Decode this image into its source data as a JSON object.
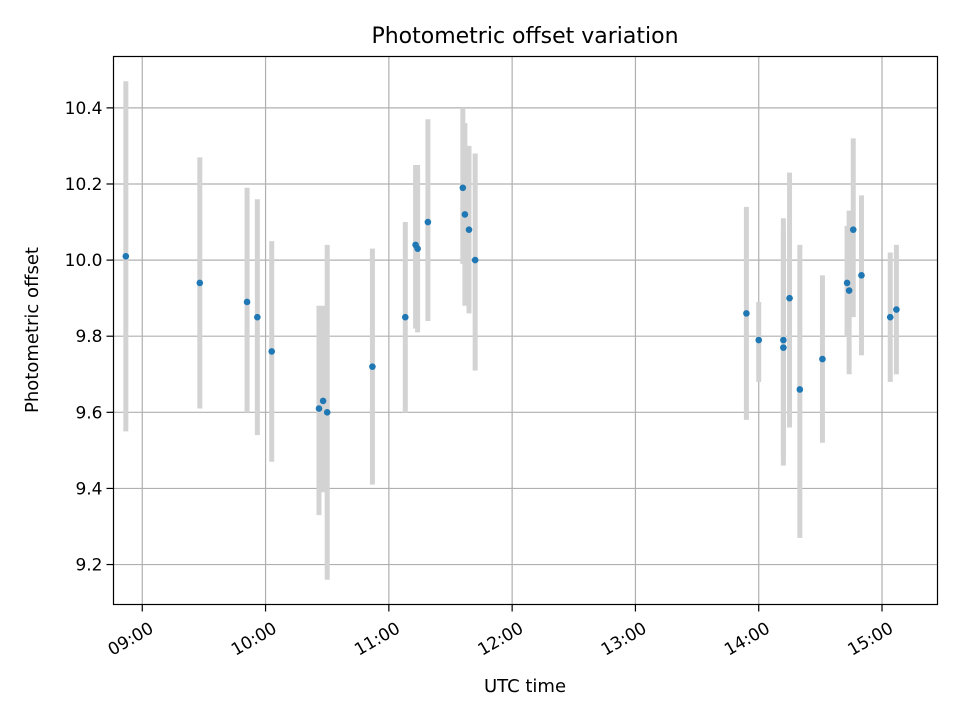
{
  "chart_data": {
    "type": "scatter",
    "title": "Photometric offset variation",
    "xlabel": "UTC time",
    "ylabel": "Photometric offset",
    "grid": true,
    "xlim": [
      "08:46",
      "15:27"
    ],
    "ylim": [
      9.095,
      10.535
    ],
    "x_ticks": [
      "09:00",
      "10:00",
      "11:00",
      "12:00",
      "13:00",
      "14:00",
      "15:00"
    ],
    "y_ticks": [
      9.2,
      9.4,
      9.6,
      9.8,
      10.0,
      10.2,
      10.4
    ],
    "colors": {
      "marker": "#1f77b4",
      "errorbar": "#d3d3d3"
    },
    "points": [
      {
        "x": "08:52",
        "y": 10.01,
        "ylow": 9.55,
        "yhigh": 10.47
      },
      {
        "x": "09:28",
        "y": 9.94,
        "ylow": 9.61,
        "yhigh": 10.27
      },
      {
        "x": "09:51",
        "y": 9.89,
        "ylow": 9.6,
        "yhigh": 10.19
      },
      {
        "x": "09:56",
        "y": 9.85,
        "ylow": 9.54,
        "yhigh": 10.16
      },
      {
        "x": "10:03",
        "y": 9.76,
        "ylow": 9.47,
        "yhigh": 10.05
      },
      {
        "x": "10:26",
        "y": 9.61,
        "ylow": 9.33,
        "yhigh": 9.88
      },
      {
        "x": "10:28",
        "y": 9.63,
        "ylow": 9.39,
        "yhigh": 9.88
      },
      {
        "x": "10:30",
        "y": 9.6,
        "ylow": 9.16,
        "yhigh": 10.04
      },
      {
        "x": "10:52",
        "y": 9.72,
        "ylow": 9.41,
        "yhigh": 10.03
      },
      {
        "x": "11:08",
        "y": 9.85,
        "ylow": 9.6,
        "yhigh": 10.1
      },
      {
        "x": "11:13",
        "y": 10.04,
        "ylow": 9.82,
        "yhigh": 10.25
      },
      {
        "x": "11:14",
        "y": 10.03,
        "ylow": 9.81,
        "yhigh": 10.25
      },
      {
        "x": "11:19",
        "y": 10.1,
        "ylow": 9.84,
        "yhigh": 10.37
      },
      {
        "x": "11:36",
        "y": 10.19,
        "ylow": 9.99,
        "yhigh": 10.4
      },
      {
        "x": "11:37",
        "y": 10.12,
        "ylow": 9.88,
        "yhigh": 10.36
      },
      {
        "x": "11:39",
        "y": 10.08,
        "ylow": 9.86,
        "yhigh": 10.3
      },
      {
        "x": "11:42",
        "y": 10.0,
        "ylow": 9.71,
        "yhigh": 10.28
      },
      {
        "x": "13:54",
        "y": 9.86,
        "ylow": 9.58,
        "yhigh": 10.14
      },
      {
        "x": "14:00",
        "y": 9.79,
        "ylow": 9.68,
        "yhigh": 9.89
      },
      {
        "x": "14:12",
        "y": 9.79,
        "ylow": 9.48,
        "yhigh": 10.11
      },
      {
        "x": "14:12",
        "y": 9.77,
        "ylow": 9.46,
        "yhigh": 10.08
      },
      {
        "x": "14:15",
        "y": 9.9,
        "ylow": 9.56,
        "yhigh": 10.23
      },
      {
        "x": "14:20",
        "y": 9.66,
        "ylow": 9.27,
        "yhigh": 10.04
      },
      {
        "x": "14:31",
        "y": 9.74,
        "ylow": 9.52,
        "yhigh": 9.96
      },
      {
        "x": "14:43",
        "y": 9.94,
        "ylow": 9.8,
        "yhigh": 10.09
      },
      {
        "x": "14:44",
        "y": 9.92,
        "ylow": 9.7,
        "yhigh": 10.13
      },
      {
        "x": "14:46",
        "y": 10.08,
        "ylow": 9.85,
        "yhigh": 10.32
      },
      {
        "x": "14:50",
        "y": 9.96,
        "ylow": 9.75,
        "yhigh": 10.17
      },
      {
        "x": "15:04",
        "y": 9.85,
        "ylow": 9.68,
        "yhigh": 10.02
      },
      {
        "x": "15:07",
        "y": 9.87,
        "ylow": 9.7,
        "yhigh": 10.04
      }
    ]
  }
}
